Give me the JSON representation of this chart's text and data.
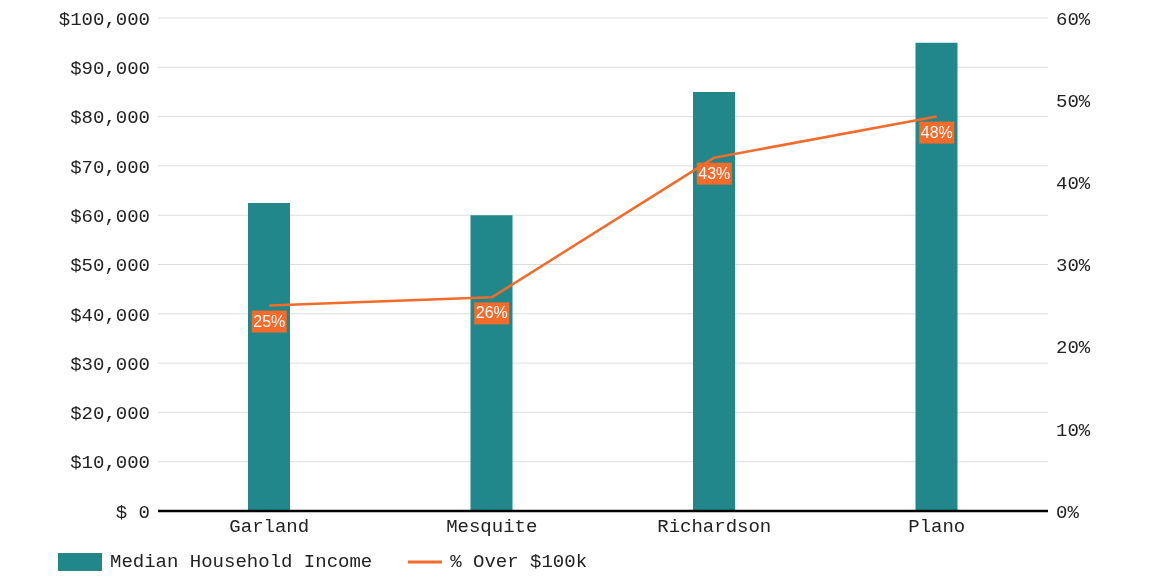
{
  "chart_data": {
    "type": "bar",
    "categories": [
      "Garland",
      "Mesquite",
      "Richardson",
      "Plano"
    ],
    "series": [
      {
        "name": "Median Household Income",
        "color": "#21878a",
        "values": [
          62500,
          60000,
          85000,
          95000
        ]
      },
      {
        "name": "% Over $100k",
        "type": "line",
        "axis": "y2",
        "color": "#f26b2a",
        "values": [
          25,
          26,
          43,
          48
        ],
        "value_labels": [
          "25%",
          "26%",
          "43%",
          "48%"
        ]
      }
    ],
    "ylim": [
      0,
      100000
    ],
    "yticks": [
      {
        "value": 0,
        "label": "$ 0"
      },
      {
        "value": 10000,
        "label": "$10,000"
      },
      {
        "value": 20000,
        "label": "$20,000"
      },
      {
        "value": 30000,
        "label": "$30,000"
      },
      {
        "value": 40000,
        "label": "$40,000"
      },
      {
        "value": 50000,
        "label": "$50,000"
      },
      {
        "value": 60000,
        "label": "$60,000"
      },
      {
        "value": 70000,
        "label": "$70,000"
      },
      {
        "value": 80000,
        "label": "$80,000"
      },
      {
        "value": 90000,
        "label": "$90,000"
      },
      {
        "value": 100000,
        "label": "$100,000"
      }
    ],
    "y2lim": [
      0,
      60
    ],
    "y2ticks": [
      {
        "value": 0,
        "label": "0%"
      },
      {
        "value": 10,
        "label": "10%"
      },
      {
        "value": 20,
        "label": "20%"
      },
      {
        "value": 30,
        "label": "30%"
      },
      {
        "value": 40,
        "label": "40%"
      },
      {
        "value": 50,
        "label": "50%"
      },
      {
        "value": 60,
        "label": "60%"
      }
    ],
    "grid": "y",
    "legend": "bottom left",
    "marker": "none",
    "line_style": "solid"
  }
}
